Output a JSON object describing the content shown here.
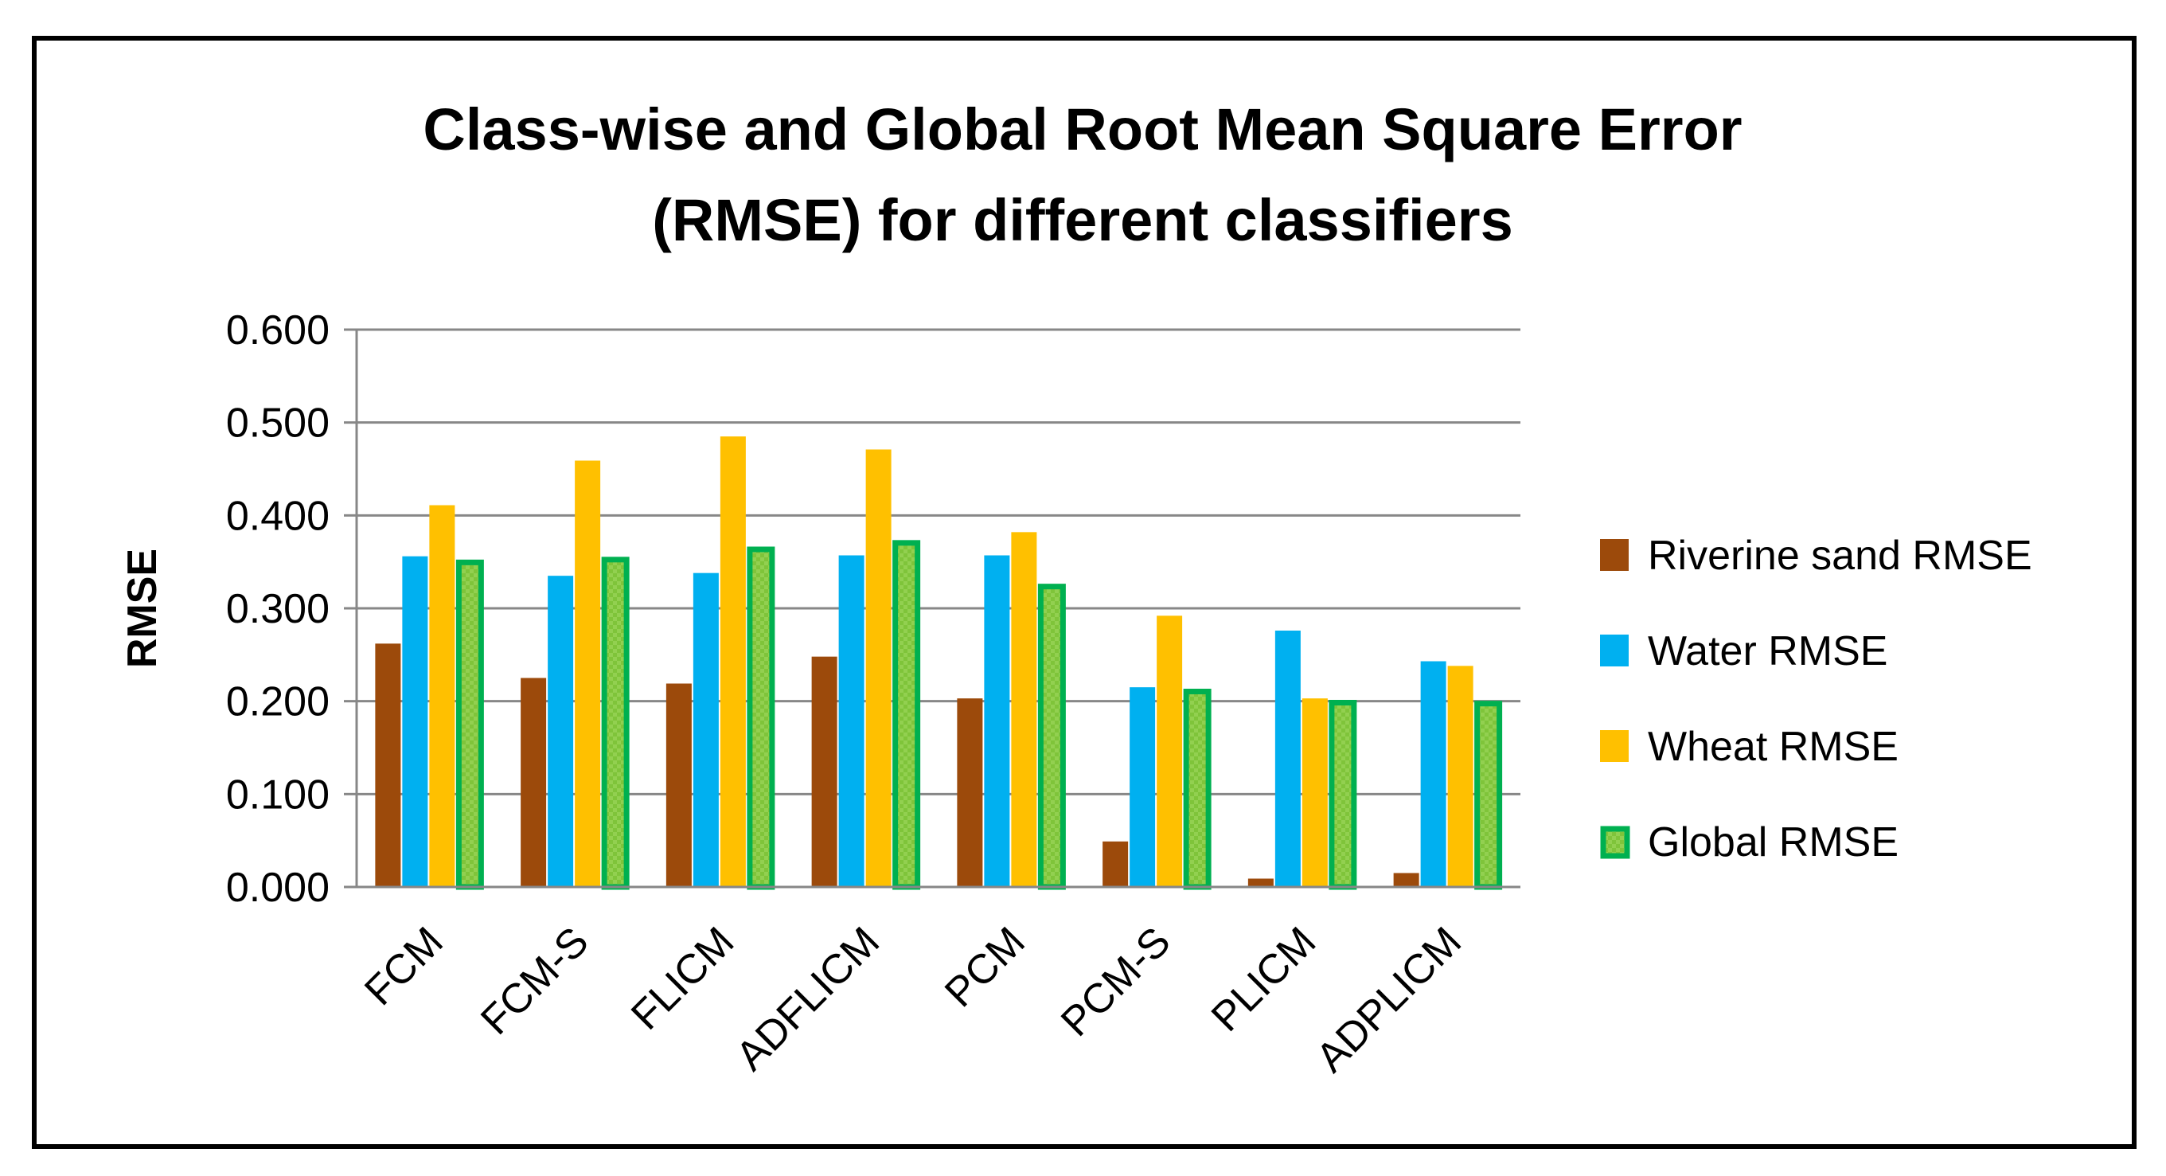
{
  "chart_data": {
    "type": "bar",
    "title_lines": [
      "Class-wise and Global Root Mean Square Error",
      "(RMSE) for different classifiers"
    ],
    "xlabel": "",
    "ylabel": "RMSE",
    "ylim": [
      0,
      0.6
    ],
    "yticks": [
      "0.000",
      "0.100",
      "0.200",
      "0.300",
      "0.400",
      "0.500",
      "0.600"
    ],
    "grid": true,
    "legend_position": "right",
    "categories": [
      "FCM",
      "FCM-S",
      "FLICM",
      "ADFLICM",
      "PCM",
      "PCM-S",
      "PLICM",
      "ADPLICM"
    ],
    "series": [
      {
        "name": "Riverine sand RMSE",
        "color": "#9C4A0B",
        "values": [
          0.262,
          0.225,
          0.219,
          0.248,
          0.203,
          0.049,
          0.009,
          0.015
        ]
      },
      {
        "name": "Water RMSE",
        "color": "#00B0F0",
        "values": [
          0.356,
          0.335,
          0.338,
          0.357,
          0.357,
          0.215,
          0.276,
          0.243
        ]
      },
      {
        "name": "Wheat RMSE",
        "color": "#FFC000",
        "values": [
          0.411,
          0.459,
          0.485,
          0.471,
          0.382,
          0.292,
          0.203,
          0.238
        ]
      },
      {
        "name": "Global RMSE",
        "color": "#92D050",
        "border_color": "#00B050",
        "values": [
          0.352,
          0.355,
          0.366,
          0.373,
          0.326,
          0.213,
          0.201,
          0.2
        ]
      }
    ]
  }
}
